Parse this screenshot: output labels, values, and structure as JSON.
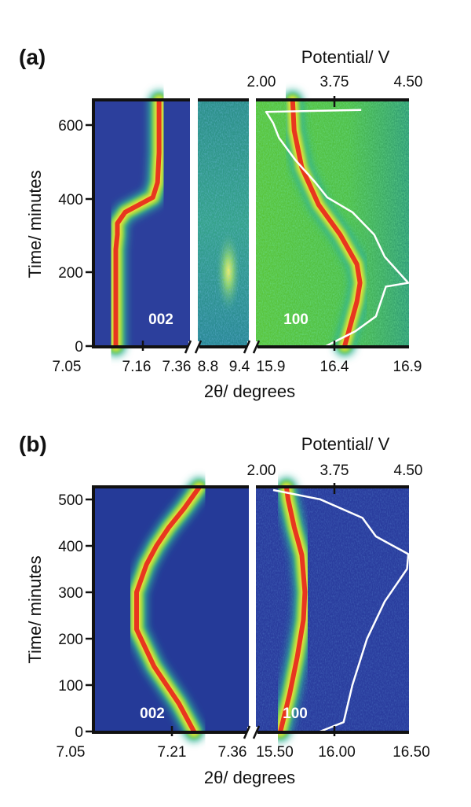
{
  "chart_data": [
    {
      "type": "heatmap",
      "panel_label": "(a)",
      "top_axis": {
        "title": "Potential/ V",
        "ticks": [
          "2.00",
          "3.75",
          "4.50"
        ],
        "values": [
          2.0,
          3.75,
          4.5
        ]
      },
      "y_axis": {
        "title": "Time/ minutes",
        "ticks": [
          "0",
          "200",
          "400",
          "600"
        ],
        "values": [
          0,
          200,
          400,
          600
        ],
        "range": [
          0,
          660
        ]
      },
      "x_axis": {
        "title": "2θ/ degrees"
      },
      "sections": [
        {
          "name": "002",
          "ticks": [
            "7.05",
            "7.16",
            "7.36"
          ],
          "range": [
            7.05,
            7.36
          ],
          "peak": {
            "time": [
              0,
              60,
              100,
              140,
              180,
              260,
              300,
              330,
              360,
              400,
              440,
              520,
              660
            ],
            "two_theta": [
              7.12,
              7.12,
              7.12,
              7.12,
              7.12,
              7.12,
              7.125,
              7.125,
              7.15,
              7.24,
              7.255,
              7.26,
              7.26
            ]
          }
        },
        {
          "name": "",
          "ticks": [
            "8.8",
            "9.4"
          ],
          "range": [
            8.8,
            9.4
          ]
        },
        {
          "name": "100",
          "ticks": [
            "15.9",
            "16.4",
            "16.9"
          ],
          "range": [
            15.9,
            16.9
          ],
          "peak": {
            "time": [
              0,
              60,
              120,
              170,
              220,
              300,
              380,
              480,
              580,
              660
            ],
            "two_theta": [
              16.48,
              16.52,
              16.56,
              16.58,
              16.56,
              16.45,
              16.31,
              16.2,
              16.15,
              16.14
            ]
          }
        }
      ],
      "potential": {
        "time": [
          0,
          40,
          80,
          160,
          170,
          240,
          300,
          360,
          400,
          440,
          500,
          560,
          600,
          620,
          630,
          635
        ],
        "volts": [
          3.1,
          3.6,
          3.95,
          4.12,
          4.5,
          4.1,
          3.92,
          3.55,
          3.12,
          2.92,
          2.58,
          2.3,
          2.2,
          2.12,
          2.08,
          3.7
        ]
      }
    },
    {
      "type": "heatmap",
      "panel_label": "(b)",
      "top_axis": {
        "title": "Potential/ V",
        "ticks": [
          "2.00",
          "3.75",
          "4.50"
        ],
        "values": [
          2.0,
          3.75,
          4.5
        ]
      },
      "y_axis": {
        "title": "Time/ minutes",
        "ticks": [
          "0",
          "100",
          "200",
          "300",
          "400",
          "500"
        ],
        "values": [
          0,
          100,
          200,
          300,
          400,
          500
        ],
        "range": [
          0,
          525
        ]
      },
      "x_axis": {
        "title": "2θ/ degrees"
      },
      "sections": [
        {
          "name": "002",
          "ticks": [
            "7.05",
            "7.21",
            "7.36"
          ],
          "range": [
            7.05,
            7.36
          ],
          "peak": {
            "time": [
              0,
              60,
              140,
              220,
              300,
              360,
              400,
              440,
              480,
              525
            ],
            "two_theta": [
              7.25,
              7.22,
              7.17,
              7.135,
              7.135,
              7.155,
              7.175,
              7.2,
              7.23,
              7.26
            ]
          }
        },
        {
          "name": "100",
          "ticks": [
            "15.50",
            "16.00",
            "16.50"
          ],
          "range": [
            15.5,
            16.5
          ],
          "peak": {
            "time": [
              0,
              80,
              160,
              240,
              300,
              380,
              440,
              500,
              525
            ],
            "two_theta": [
              15.66,
              15.72,
              15.77,
              15.81,
              15.82,
              15.8,
              15.75,
              15.71,
              15.7
            ]
          }
        }
      ],
      "potential": {
        "time": [
          0,
          20,
          100,
          200,
          280,
          350,
          378,
          382,
          420,
          460,
          500,
          520
        ],
        "volts": [
          3.0,
          3.4,
          3.55,
          3.8,
          4.1,
          4.48,
          4.5,
          4.5,
          3.95,
          3.72,
          3.0,
          2.2
        ]
      }
    }
  ]
}
